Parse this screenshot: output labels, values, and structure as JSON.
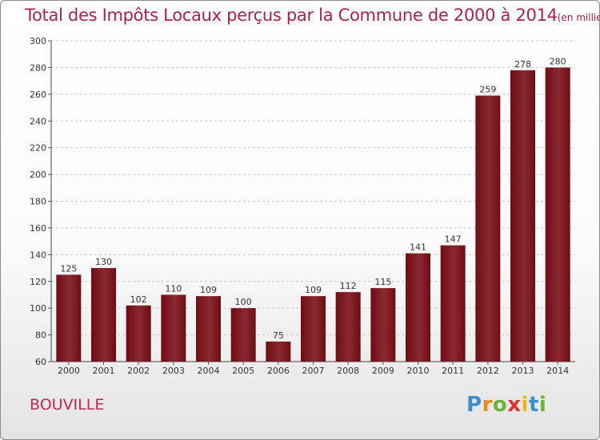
{
  "title": "Total des Impôts Locaux perçus par la Commune de 2000 à 2014",
  "unit_note": "(en milliers d'€)",
  "commune": "BOUVILLE",
  "logo_text": "Proxiti",
  "colors": {
    "bar": "#6e0e14",
    "bar_light": "#8a2a30",
    "title": "#a8224a",
    "grid": "#c8c8c8"
  },
  "chart_data": {
    "type": "bar",
    "categories": [
      "2000",
      "2001",
      "2002",
      "2003",
      "2004",
      "2005",
      "2006",
      "2007",
      "2008",
      "2009",
      "2010",
      "2011",
      "2012",
      "2013",
      "2014"
    ],
    "values": [
      125,
      130,
      102,
      110,
      109,
      100,
      75,
      109,
      112,
      115,
      141,
      147,
      259,
      278,
      280
    ],
    "title": "Total des Impôts Locaux perçus par la Commune de 2000 à 2014",
    "ylim": [
      60,
      300
    ],
    "yticks": [
      60,
      80,
      100,
      120,
      140,
      160,
      180,
      200,
      220,
      240,
      260,
      280,
      300
    ],
    "grid": true
  }
}
